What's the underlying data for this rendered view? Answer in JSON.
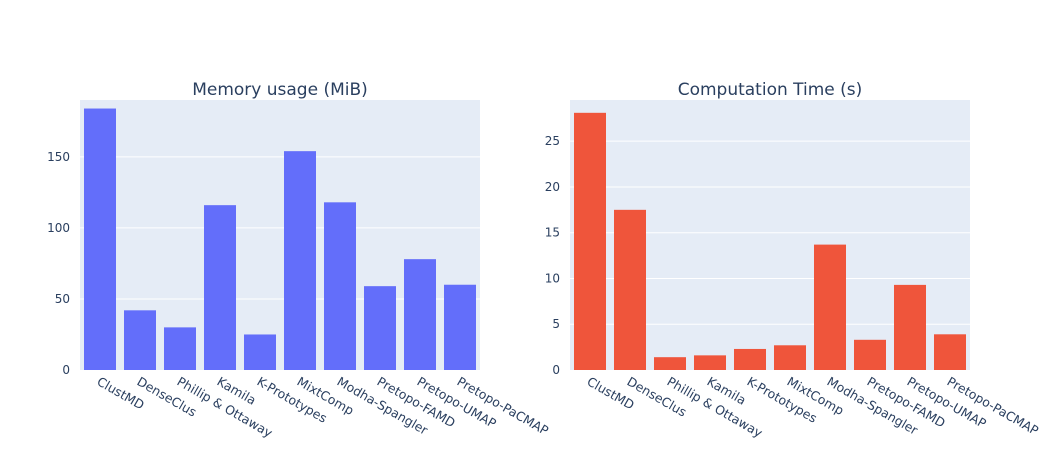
{
  "chart_data": [
    {
      "type": "bar",
      "title": "Memory usage (MiB)",
      "xlabel": "",
      "ylabel": "",
      "categories": [
        "ClustMD",
        "DenseClus",
        "Phillip & Ottaway",
        "Kamila",
        "K-Prototypes",
        "MixtComp",
        "Modha-Spangler",
        "Pretopo-FAMD",
        "Pretopo-UMAP",
        "Pretopo-PaCMAP"
      ],
      "values": [
        184,
        42,
        30,
        116,
        25,
        154,
        118,
        59,
        78,
        60
      ],
      "ylim": [
        0,
        190
      ],
      "yticks": [
        0,
        50,
        100,
        150
      ],
      "color": "#636efa",
      "grid": true
    },
    {
      "type": "bar",
      "title": "Computation Time (s)",
      "xlabel": "",
      "ylabel": "",
      "categories": [
        "ClustMD",
        "DenseClus",
        "Phillip & Ottaway",
        "Kamila",
        "K-Prototypes",
        "MixtComp",
        "Modha-Spangler",
        "Pretopo-FAMD",
        "Pretopo-UMAP",
        "Pretopo-PaCMAP"
      ],
      "values": [
        28.1,
        17.5,
        1.4,
        1.6,
        2.3,
        2.7,
        13.7,
        3.3,
        9.3,
        3.9
      ],
      "ylim": [
        0,
        29.5
      ],
      "yticks": [
        0,
        5,
        10,
        15,
        20,
        25
      ],
      "color": "#ef553b",
      "grid": true
    }
  ],
  "style": {
    "plot_background": "#e5ecf6",
    "grid_color": "#ffffff",
    "text_color": "#2a3f5f"
  }
}
